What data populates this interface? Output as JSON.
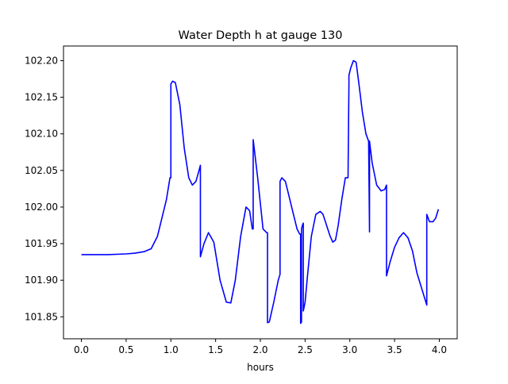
{
  "chart_data": {
    "type": "line",
    "title": "Water Depth h at gauge 130",
    "xlabel": "hours",
    "ylabel": "",
    "xlim": [
      -0.2,
      4.2
    ],
    "ylim": [
      101.82,
      102.22
    ],
    "grid": false,
    "legend": "none",
    "x_ticks": [
      0.0,
      0.5,
      1.0,
      1.5,
      2.0,
      2.5,
      3.0,
      3.5,
      4.0
    ],
    "x_tick_labels": [
      "0.0",
      "0.5",
      "1.0",
      "1.5",
      "2.0",
      "2.5",
      "3.0",
      "3.5",
      "4.0"
    ],
    "y_ticks": [
      101.85,
      101.9,
      101.95,
      102.0,
      102.05,
      102.1,
      102.15,
      102.2
    ],
    "y_tick_labels": [
      "101.85",
      "101.90",
      "101.95",
      "102.00",
      "102.05",
      "102.10",
      "102.15",
      "102.20"
    ],
    "series": [
      {
        "color": "#0000ff",
        "x": [
          0.0,
          0.3,
          0.5,
          0.6,
          0.7,
          0.78,
          0.85,
          0.9,
          0.95,
          0.99,
          1.0,
          1.0,
          1.02,
          1.05,
          1.1,
          1.15,
          1.2,
          1.24,
          1.28,
          1.31,
          1.33,
          1.33,
          1.37,
          1.42,
          1.48,
          1.55,
          1.62,
          1.67,
          1.72,
          1.78,
          1.84,
          1.88,
          1.91,
          1.92,
          1.92,
          1.97,
          2.03,
          2.07,
          2.08,
          2.08,
          2.1,
          2.15,
          2.2,
          2.22,
          2.22,
          2.24,
          2.28,
          2.32,
          2.37,
          2.41,
          2.44,
          2.45,
          2.45,
          2.46,
          2.46,
          2.47,
          2.48,
          2.48,
          2.5,
          2.53,
          2.57,
          2.62,
          2.67,
          2.7,
          2.74,
          2.78,
          2.81,
          2.84,
          2.87,
          2.91,
          2.95,
          2.98,
          2.99,
          2.99,
          3.01,
          3.04,
          3.07,
          3.1,
          3.14,
          3.18,
          3.21,
          3.22,
          3.22,
          3.22,
          3.25,
          3.3,
          3.35,
          3.39,
          3.41,
          3.41,
          3.45,
          3.5,
          3.55,
          3.6,
          3.65,
          3.7,
          3.75,
          3.8,
          3.86,
          3.86,
          3.86,
          3.89,
          3.93,
          3.96,
          3.99
        ],
        "values": [
          101.935,
          101.935,
          101.936,
          101.937,
          101.939,
          101.943,
          101.96,
          101.985,
          102.01,
          102.04,
          102.04,
          102.168,
          102.172,
          102.17,
          102.14,
          102.08,
          102.04,
          102.03,
          102.035,
          102.048,
          102.057,
          101.932,
          101.95,
          101.965,
          101.952,
          101.9,
          101.87,
          101.869,
          101.9,
          101.96,
          102.0,
          101.995,
          101.97,
          101.97,
          102.092,
          102.04,
          101.97,
          101.965,
          101.965,
          101.842,
          101.843,
          101.87,
          101.9,
          101.908,
          102.035,
          102.04,
          102.035,
          102.015,
          101.99,
          101.97,
          101.963,
          101.963,
          101.841,
          101.843,
          101.97,
          101.975,
          101.978,
          101.858,
          101.87,
          101.91,
          101.96,
          101.99,
          101.994,
          101.99,
          101.975,
          101.96,
          101.952,
          101.955,
          101.975,
          102.01,
          102.04,
          102.04,
          102.168,
          102.18,
          102.19,
          102.2,
          102.198,
          102.17,
          102.13,
          102.1,
          102.09,
          101.966,
          101.966,
          102.09,
          102.06,
          102.03,
          102.022,
          102.024,
          102.03,
          101.906,
          101.925,
          101.945,
          101.958,
          101.965,
          101.958,
          101.94,
          101.91,
          101.89,
          101.866,
          101.866,
          101.99,
          101.98,
          101.98,
          101.985,
          101.997
        ]
      }
    ]
  }
}
